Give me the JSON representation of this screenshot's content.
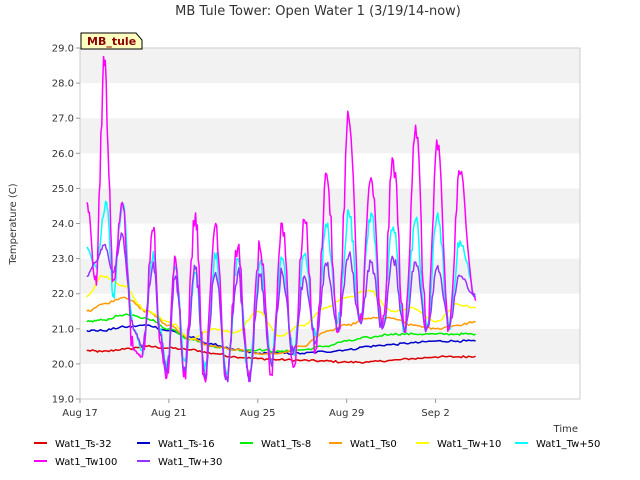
{
  "chart_data": {
    "type": "line",
    "title": "MB Tule Tower: Open Water 1 (3/19/14-now)",
    "xlabel": "Time",
    "ylabel": "Temperature (C)",
    "ylim": [
      19.0,
      29.0
    ],
    "xlim": [
      0,
      22.5
    ],
    "x_unit": "days since Aug 17",
    "yticks": [
      "19.0",
      "20.0",
      "21.0",
      "22.0",
      "23.0",
      "24.0",
      "25.0",
      "26.0",
      "27.0",
      "28.0",
      "29.0"
    ],
    "xticks": [
      {
        "label": "Aug 17",
        "value": 0
      },
      {
        "label": "Aug 21",
        "value": 4
      },
      {
        "label": "Aug 25",
        "value": 8
      },
      {
        "label": "Aug 29",
        "value": 12
      },
      {
        "label": "Sep 2",
        "value": 16
      }
    ],
    "grid": "horizontal bands",
    "annotation": "MB_tule",
    "series": [
      {
        "name": "Wat1_Ts-32",
        "color": "#dd0000",
        "x": [
          0.3,
          1,
          2,
          3,
          4,
          5,
          6,
          7,
          8,
          9,
          10,
          11,
          12,
          13,
          14,
          15,
          16,
          17,
          17.8
        ],
        "values": [
          20.38,
          20.35,
          20.42,
          20.5,
          20.45,
          20.4,
          20.3,
          20.2,
          20.15,
          20.12,
          20.1,
          20.08,
          20.05,
          20.05,
          20.1,
          20.15,
          20.2,
          20.2,
          20.22
        ]
      },
      {
        "name": "Wat1_Ts-16",
        "color": "#0000cc",
        "x": [
          0.3,
          1,
          2,
          3,
          4,
          5,
          6,
          7,
          8,
          9,
          10,
          11,
          12,
          13,
          14,
          15,
          16,
          17,
          17.8
        ],
        "values": [
          20.95,
          20.95,
          21.05,
          21.1,
          20.95,
          20.75,
          20.55,
          20.4,
          20.3,
          20.3,
          20.3,
          20.35,
          20.4,
          20.5,
          20.55,
          20.6,
          20.65,
          20.65,
          20.65
        ]
      },
      {
        "name": "Wat1_Ts-8",
        "color": "#00ee00",
        "x": [
          0.3,
          1,
          2,
          3,
          4,
          5,
          6,
          7,
          8,
          9,
          10,
          11,
          12,
          13,
          14,
          15,
          16,
          17,
          17.8
        ],
        "values": [
          21.2,
          21.25,
          21.4,
          21.3,
          21.0,
          20.7,
          20.5,
          20.4,
          20.4,
          20.35,
          20.4,
          20.5,
          20.65,
          20.75,
          20.85,
          20.85,
          20.85,
          20.85,
          20.85
        ]
      },
      {
        "name": "Wat1_Ts0",
        "color": "#ff9900",
        "x": [
          0.3,
          1,
          2,
          3,
          4,
          5,
          6,
          7,
          8,
          9,
          10,
          11,
          12,
          13,
          14,
          15,
          16,
          17,
          17.8
        ],
        "values": [
          21.5,
          21.7,
          21.9,
          21.5,
          21.1,
          20.7,
          20.5,
          20.4,
          20.3,
          20.3,
          20.5,
          20.9,
          21.1,
          21.3,
          21.3,
          21.1,
          21.0,
          21.1,
          21.2
        ]
      },
      {
        "name": "Wat1_Tw+10",
        "color": "#ffff00",
        "x": [
          0.3,
          1,
          2,
          3,
          4,
          5,
          6,
          7,
          8,
          9,
          10,
          11,
          12,
          13,
          14,
          15,
          16,
          17,
          17.8
        ],
        "values": [
          21.9,
          22.5,
          22.2,
          21.5,
          21.2,
          20.7,
          21.0,
          20.9,
          21.5,
          20.8,
          21.1,
          21.6,
          21.9,
          22.1,
          21.5,
          21.6,
          21.2,
          21.7,
          21.6
        ]
      },
      {
        "name": "Wat1_Tw+50",
        "color": "#00ffff",
        "x": [
          0.3,
          0.7,
          1.2,
          1.5,
          1.9,
          2.4,
          2.8,
          3.3,
          3.6,
          3.9,
          4.3,
          4.7,
          5.2,
          5.6,
          6.1,
          6.6,
          7.1,
          7.6,
          8.1,
          8.6,
          9.1,
          9.6,
          10.1,
          10.6,
          11.1,
          11.6,
          12.1,
          12.6,
          13.1,
          13.6,
          14.1,
          14.6,
          15.1,
          15.6,
          16.1,
          16.6,
          17.1,
          17.8
        ],
        "values": [
          23.3,
          22.8,
          24.6,
          22.0,
          24.5,
          21.0,
          20.4,
          23.2,
          21.0,
          19.9,
          22.7,
          20.1,
          22.6,
          19.8,
          23.0,
          19.7,
          23.0,
          19.6,
          22.9,
          20.1,
          23.0,
          20.3,
          23.1,
          20.8,
          23.9,
          21.2,
          24.3,
          21.4,
          24.3,
          21.2,
          23.9,
          21.0,
          24.1,
          21.0,
          24.3,
          21.0,
          23.5,
          22.0
        ]
      },
      {
        "name": "Wat1_Tw100",
        "color": "#ff00ff",
        "x": [
          0.3,
          0.7,
          1.1,
          1.5,
          1.9,
          2.4,
          2.8,
          3.3,
          3.6,
          3.9,
          4.3,
          4.7,
          5.2,
          5.6,
          6.1,
          6.6,
          7.1,
          7.6,
          8.1,
          8.6,
          9.1,
          9.6,
          10.1,
          10.6,
          11.1,
          11.6,
          12.1,
          12.6,
          13.1,
          13.6,
          14.1,
          14.6,
          15.1,
          15.6,
          16.1,
          16.6,
          17.1,
          17.8
        ],
        "values": [
          24.6,
          22.5,
          28.5,
          22.4,
          24.6,
          20.4,
          20.2,
          23.8,
          20.6,
          19.6,
          23.0,
          19.8,
          24.3,
          19.6,
          24.0,
          19.6,
          23.3,
          19.5,
          23.3,
          19.7,
          24.0,
          19.9,
          24.1,
          20.4,
          25.4,
          20.9,
          27.0,
          21.2,
          25.3,
          21.0,
          25.8,
          20.9,
          26.8,
          21.0,
          26.1,
          21.0,
          25.4,
          21.8
        ]
      },
      {
        "name": "Wat1_Tw+30",
        "color": "#9933ff",
        "x": [
          0.3,
          0.7,
          1.1,
          1.5,
          1.9,
          2.4,
          2.8,
          3.3,
          3.6,
          3.9,
          4.3,
          4.7,
          5.2,
          5.6,
          6.1,
          6.6,
          7.1,
          7.6,
          8.1,
          8.6,
          9.1,
          9.6,
          10.1,
          10.6,
          11.1,
          11.6,
          12.1,
          12.6,
          13.1,
          13.6,
          14.1,
          14.6,
          15.1,
          15.6,
          16.1,
          16.6,
          17.1,
          17.8
        ],
        "values": [
          22.5,
          22.9,
          23.4,
          22.6,
          23.7,
          21.0,
          20.5,
          22.9,
          20.9,
          19.8,
          22.5,
          19.9,
          22.7,
          19.7,
          22.6,
          19.6,
          22.6,
          19.6,
          22.5,
          20.0,
          22.6,
          20.3,
          22.5,
          20.6,
          22.8,
          21.0,
          23.1,
          21.2,
          22.9,
          21.0,
          23.0,
          21.0,
          22.9,
          21.0,
          22.8,
          21.1,
          22.5,
          21.9
        ]
      }
    ]
  }
}
